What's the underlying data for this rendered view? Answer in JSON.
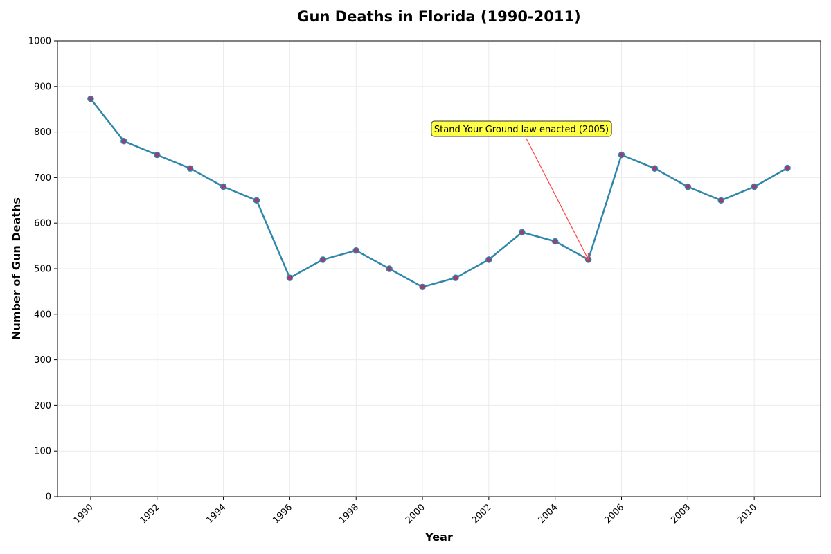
{
  "chart_data": {
    "type": "line",
    "title": "Gun Deaths in Florida (1990-2011)",
    "xlabel": "Year",
    "ylabel": "Number of Gun Deaths",
    "x": [
      1990,
      1991,
      1992,
      1993,
      1994,
      1995,
      1996,
      1997,
      1998,
      1999,
      2000,
      2001,
      2002,
      2003,
      2004,
      2005,
      2006,
      2007,
      2008,
      2009,
      2010,
      2011
    ],
    "values": [
      873,
      780,
      750,
      720,
      680,
      650,
      480,
      520,
      540,
      500,
      460,
      480,
      520,
      580,
      560,
      520,
      750,
      720,
      680,
      650,
      680,
      721
    ],
    "xlim": [
      1989,
      2012
    ],
    "ylim": [
      0,
      1000
    ],
    "xticks": [
      1990,
      1992,
      1994,
      1996,
      1998,
      2000,
      2002,
      2004,
      2006,
      2008,
      2010
    ],
    "yticks": [
      0,
      100,
      200,
      300,
      400,
      500,
      600,
      700,
      800,
      900,
      1000
    ],
    "grid": true,
    "colors": {
      "line": "#2e86ab",
      "marker": "#a23b72",
      "annotation_box": "#ffff44",
      "arrow": "#ff4444",
      "grid": "#ebebeb"
    },
    "annotation": {
      "text": "Stand Your Ground law enacted (2005)",
      "x": 2005,
      "y": 520
    }
  }
}
